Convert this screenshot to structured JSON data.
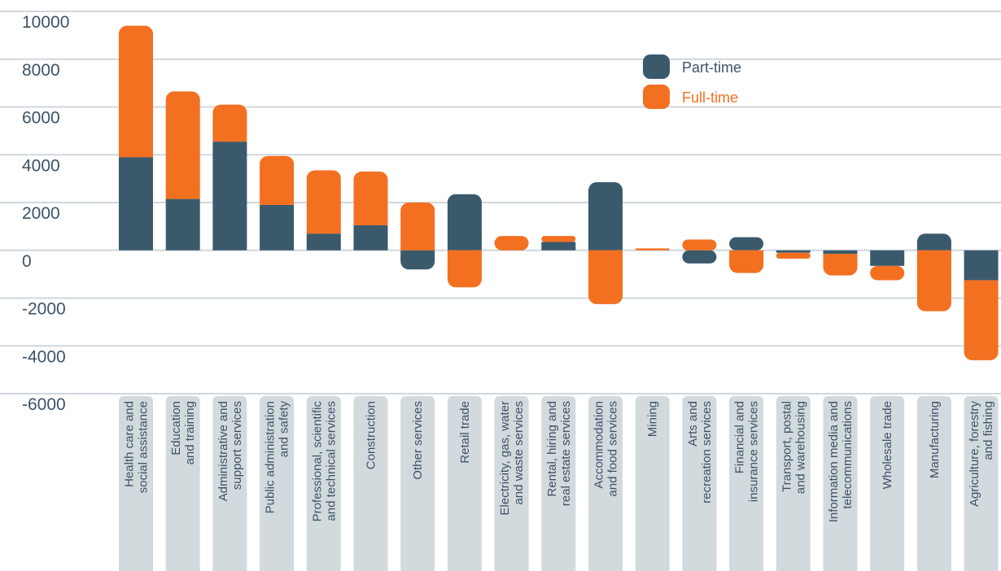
{
  "chart_data": {
    "type": "bar",
    "stacked": true,
    "orientation": "vertical",
    "ylim": [
      -6000,
      10000
    ],
    "yticks": [
      "10000",
      "8000",
      "6000",
      "4000",
      "2000",
      "0",
      "-2000",
      "-4000",
      "-6000"
    ],
    "grid": true,
    "legend_position": "top-right",
    "categories": [
      [
        "Health care and",
        "social assistance"
      ],
      [
        "Education",
        "and training"
      ],
      [
        "Administrative and",
        "support services"
      ],
      [
        "Public administration",
        "and safety"
      ],
      [
        "Professional, scientific",
        "and technical services"
      ],
      [
        "Construction"
      ],
      [
        "Other services"
      ],
      [
        "Retail trade"
      ],
      [
        "Electricity, gas, water",
        "and waste services"
      ],
      [
        "Rental, hiring and",
        "real estate services"
      ],
      [
        "Accommodation",
        "and food services"
      ],
      [
        "Mining"
      ],
      [
        "Arts and",
        "recreation services"
      ],
      [
        "Financial and",
        "insurance services"
      ],
      [
        "Transport, postal",
        "and warehousing"
      ],
      [
        "Information media and",
        "telecommunications"
      ],
      [
        "Wholesale trade"
      ],
      [
        "Manufacturing"
      ],
      [
        "Agriculture, forestry",
        "and fishing"
      ]
    ],
    "series": [
      {
        "name": "Part-time",
        "color": "#3a5a6c",
        "values": [
          3900,
          2150,
          4550,
          1900,
          700,
          1050,
          -800,
          2350,
          0,
          350,
          2850,
          0,
          -550,
          550,
          -100,
          -150,
          -650,
          700,
          -1250
        ]
      },
      {
        "name": "Full-time",
        "color": "#f37021",
        "values": [
          5500,
          4500,
          1550,
          2050,
          2650,
          2250,
          2000,
          -1550,
          600,
          250,
          -2250,
          80,
          450,
          -950,
          -250,
          -900,
          -600,
          -2550,
          -3350
        ]
      }
    ]
  }
}
